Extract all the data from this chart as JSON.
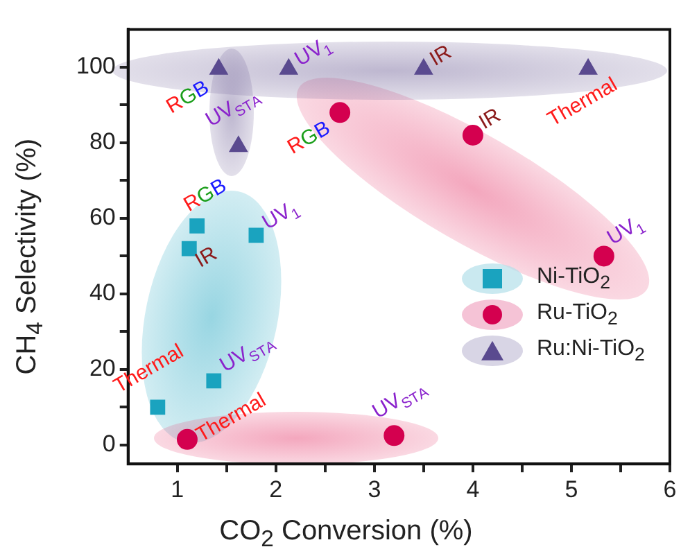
{
  "chart_data": {
    "type": "scatter",
    "xlabel": "CO$_{2}$ Conversion (%)",
    "ylabel": "CH$_{4}$ Selectivity (%)",
    "xlim": [
      0.5,
      6
    ],
    "xticks": [
      1,
      {
        "value": 1.5,
        "label": null
      },
      2,
      {
        "value": 2.5,
        "label": null
      },
      3,
      {
        "value": 3.5,
        "label": null
      },
      4,
      {
        "value": 4.5,
        "label": null
      },
      5,
      {
        "value": 5.5,
        "label": null
      },
      6
    ],
    "ylim": [
      -5,
      110
    ],
    "yticks": [
      0,
      {
        "value": 10,
        "label": null
      },
      20,
      {
        "value": 30,
        "label": null
      },
      40,
      {
        "value": 50,
        "label": null
      },
      60,
      {
        "value": 70,
        "label": null
      },
      80,
      {
        "value": 90,
        "label": null
      },
      100
    ],
    "grid": false,
    "legend": "right",
    "series": [
      {
        "name": "Ni-TiO$_{2}$",
        "color": "#1aa3bf",
        "marker": "square",
        "x": [
          0.8,
          1.37,
          1.12,
          1.2,
          1.8
        ],
        "values": [
          10,
          17,
          52,
          58,
          55.5
        ]
      },
      {
        "name": "Ru-TiO$_{2}$",
        "color": "#d4004f",
        "marker": "circle",
        "x": [
          1.1,
          3.2,
          2.65,
          4.0,
          5.33
        ],
        "values": [
          1.5,
          2.5,
          88,
          82,
          50
        ]
      },
      {
        "name": "Ru:Ni-TiO$_{2}$",
        "color": "#5a4a8f",
        "marker": "triangle",
        "x": [
          1.42,
          2.13,
          3.5,
          5.17,
          1.62
        ],
        "values": [
          99.5,
          99.5,
          99.5,
          99.5,
          79
        ]
      }
    ],
    "annotations": [
      {
        "text": "Thermal",
        "x": 0.8,
        "y": 10
      },
      {
        "text": "UV$_{STA}$",
        "x": 1.37,
        "y": 17
      },
      {
        "text": "IR",
        "x": 1.12,
        "y": 52
      },
      {
        "text": "RGB",
        "x": 1.2,
        "y": 58
      },
      {
        "text": "UV$_{1}$",
        "x": 1.8,
        "y": 55.5
      },
      {
        "text": "Thermal",
        "x": 1.1,
        "y": 1.5
      },
      {
        "text": "UV$_{STA}$",
        "x": 3.2,
        "y": 2.5
      },
      {
        "text": "RGB",
        "x": 2.65,
        "y": 88
      },
      {
        "text": "IR",
        "x": 4.0,
        "y": 82
      },
      {
        "text": "UV$_{1}$",
        "x": 5.33,
        "y": 50
      },
      {
        "text": "RGB",
        "x": 1.42,
        "y": 99.5
      },
      {
        "text": "UV$_{1}$",
        "x": 2.13,
        "y": 99.5
      },
      {
        "text": "IR",
        "x": 3.5,
        "y": 99.5
      },
      {
        "text": "Thermal",
        "x": 5.17,
        "y": 99.5
      },
      {
        "text": "UV$_{STA}$",
        "x": 1.62,
        "y": 79
      }
    ]
  }
}
